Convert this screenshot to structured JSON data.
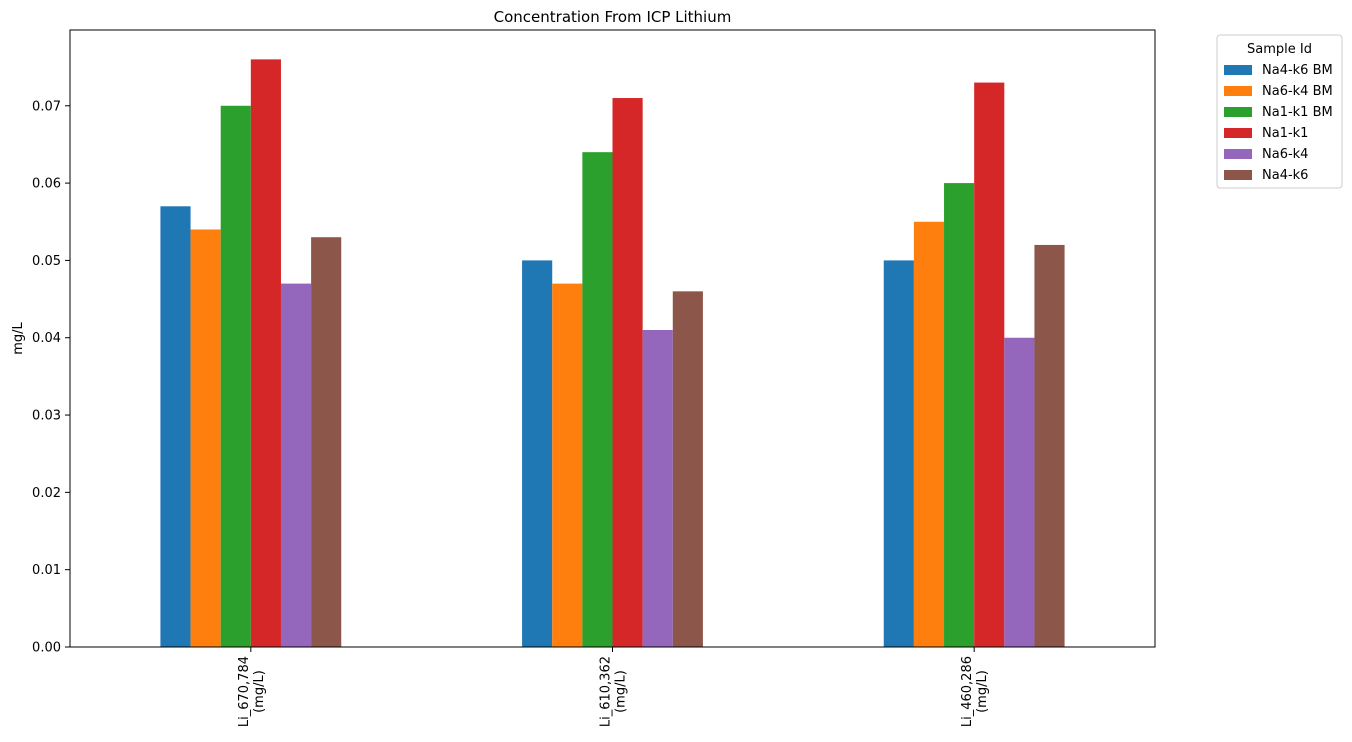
{
  "chart_data": {
    "type": "bar",
    "title": "Concentration From ICP Lithium",
    "xlabel": "",
    "ylabel": "mg/L",
    "ylim": [
      0,
      0.0798
    ],
    "yticks": [
      "0.00",
      "0.01",
      "0.02",
      "0.03",
      "0.04",
      "0.05",
      "0.06",
      "0.07"
    ],
    "categories": [
      [
        "Li_670,784",
        "(mg/L)"
      ],
      [
        "Li_610,362",
        "(mg/L)"
      ],
      [
        "Li_460,286",
        "(mg/L)"
      ]
    ],
    "series": [
      {
        "name": "Na4-k6 BM",
        "color": "#1f77b4",
        "values": [
          0.057,
          0.05,
          0.05
        ]
      },
      {
        "name": "Na6-k4 BM",
        "color": "#ff7f0e",
        "values": [
          0.054,
          0.047,
          0.055
        ]
      },
      {
        "name": "Na1-k1 BM",
        "color": "#2ca02c",
        "values": [
          0.07,
          0.064,
          0.06
        ]
      },
      {
        "name": "Na1-k1",
        "color": "#d62728",
        "values": [
          0.076,
          0.071,
          0.073
        ]
      },
      {
        "name": "Na6-k4",
        "color": "#9467bd",
        "values": [
          0.047,
          0.041,
          0.04
        ]
      },
      {
        "name": "Na4-k6",
        "color": "#8c564b",
        "values": [
          0.053,
          0.046,
          0.052
        ]
      }
    ],
    "grid": false,
    "legend": {
      "title": "Sample Id",
      "placement": "outside-top-right"
    }
  }
}
